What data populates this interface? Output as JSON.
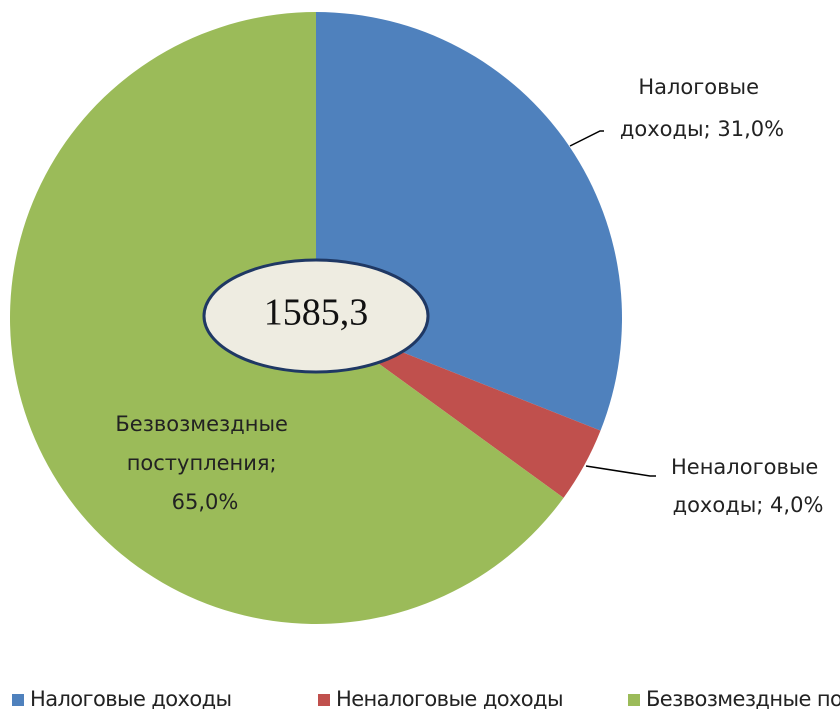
{
  "chart_data": {
    "type": "pie",
    "categories": [
      "Налоговые доходы",
      "Неналоговые доходы",
      "Безвозмездные поступления"
    ],
    "values": [
      31,
      4,
      65
    ],
    "value_labels": [
      "Налоговые доходы; 31,0%",
      "Неналоговые доходы; 4,0%",
      "Безвозмездные поступления; 65,0%"
    ],
    "colors": [
      "#4f81bd",
      "#c0504d",
      "#9bbb59"
    ],
    "center_label": "1585,3",
    "legend": "bottom"
  }
}
